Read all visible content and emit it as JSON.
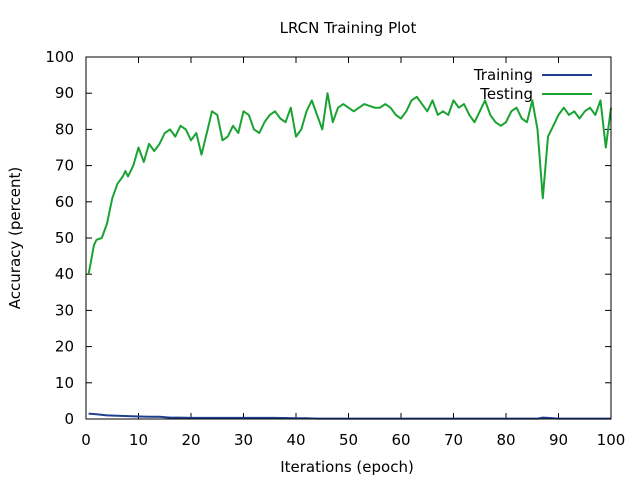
{
  "chart_data": {
    "type": "line",
    "title": "LRCN Training Plot",
    "xlabel": "Iterations (epoch)",
    "ylabel": "Accuracy (percent)",
    "xlim": [
      0,
      100
    ],
    "ylim": [
      0,
      100
    ],
    "x_ticks": [
      0,
      10,
      20,
      30,
      40,
      50,
      60,
      70,
      80,
      90,
      100
    ],
    "y_ticks": [
      0,
      10,
      20,
      30,
      40,
      50,
      60,
      70,
      80,
      90,
      100
    ],
    "x_tick_labels": [
      "0",
      "10",
      "20",
      "30",
      "40",
      "50",
      "60",
      "70",
      "80",
      "90",
      "100"
    ],
    "y_tick_labels": [
      "0",
      "10",
      "20",
      "30",
      "40",
      "50",
      "60",
      "70",
      "80",
      "90",
      "100"
    ],
    "grid": false,
    "legend_position": "top-right",
    "series": [
      {
        "name": "Training",
        "color": "#1f3f8f",
        "x": [
          0.5,
          2,
          4,
          6,
          8,
          10,
          12,
          14,
          16,
          18,
          20,
          22,
          25,
          28,
          30,
          33,
          36,
          40,
          42,
          44,
          50,
          60,
          70,
          80,
          86,
          87,
          88,
          90,
          95,
          100
        ],
        "y": [
          1.5,
          1.3,
          1.0,
          0.9,
          0.8,
          0.7,
          0.6,
          0.6,
          0.4,
          0.4,
          0.3,
          0.3,
          0.3,
          0.3,
          0.3,
          0.3,
          0.3,
          0.2,
          0.2,
          0.1,
          0.1,
          0.1,
          0.1,
          0.1,
          0.1,
          0.4,
          0.3,
          0.1,
          0.1,
          0.1
        ]
      },
      {
        "name": "Testing",
        "color": "#1aa332",
        "x": [
          0.5,
          1,
          1.5,
          2,
          3,
          4,
          5,
          6,
          7,
          7.5,
          8,
          9,
          10,
          11,
          12,
          13,
          14,
          15,
          16,
          17,
          18,
          19,
          20,
          21,
          22,
          23,
          24,
          25,
          26,
          27,
          28,
          29,
          30,
          31,
          32,
          33,
          34,
          35,
          36,
          37,
          38,
          39,
          40,
          41,
          42,
          43,
          44,
          45,
          46,
          47,
          48,
          49,
          50,
          51,
          52,
          53,
          54,
          55,
          56,
          57,
          58,
          59,
          60,
          61,
          62,
          63,
          64,
          65,
          66,
          67,
          68,
          69,
          70,
          71,
          72,
          73,
          74,
          75,
          76,
          77,
          78,
          79,
          80,
          81,
          82,
          83,
          84,
          85,
          86,
          87,
          88,
          89,
          90,
          91,
          92,
          93,
          94,
          95,
          96,
          97,
          98,
          99,
          100
        ],
        "y": [
          40,
          44,
          48,
          49.5,
          50,
          54,
          61,
          65,
          67,
          68.5,
          67,
          70,
          75,
          71,
          76,
          74,
          76,
          79,
          80,
          78,
          81,
          80,
          77,
          79,
          73,
          79,
          85,
          84,
          77,
          78,
          81,
          79,
          85,
          84,
          80,
          79,
          82,
          84,
          85,
          83,
          82,
          86,
          78,
          80,
          85,
          88,
          84,
          80,
          90,
          82,
          86,
          87,
          86,
          85,
          86,
          87,
          86.5,
          86,
          86,
          87,
          86,
          84,
          83,
          85,
          88,
          89,
          87,
          85,
          88,
          84,
          85,
          84,
          88,
          86,
          87,
          84,
          82,
          85,
          88,
          84,
          82,
          81,
          82,
          85,
          86,
          83,
          82,
          88,
          80,
          61,
          78,
          81,
          84,
          86,
          84,
          85,
          83,
          85,
          86,
          84,
          88,
          75,
          86
        ]
      }
    ]
  }
}
